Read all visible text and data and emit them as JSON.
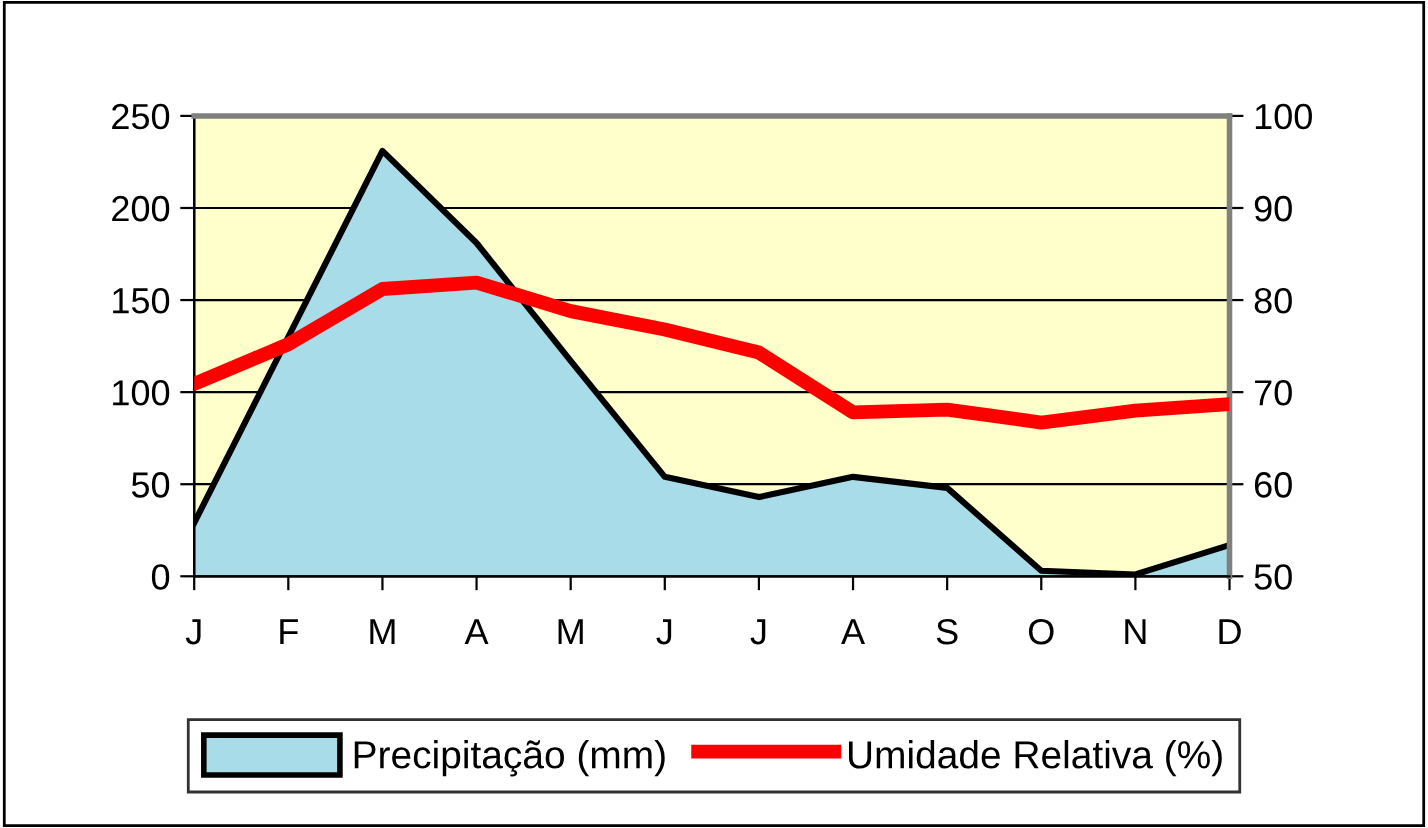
{
  "chart_data": {
    "type": "area",
    "categories": [
      "J",
      "F",
      "M",
      "A",
      "M",
      "J",
      "J",
      "A",
      "S",
      "O",
      "N",
      "D"
    ],
    "series": [
      {
        "name": "Precipitação (mm)",
        "color": "#a8dce8",
        "values": [
          29,
          130,
          231,
          181,
          117,
          54,
          43,
          54,
          48,
          3,
          1,
          17
        ]
      },
      {
        "name": "Umidade Relativa (%)",
        "type": "line",
        "axis": "y2",
        "color": "#ff0000",
        "values": [
          70.9,
          75.2,
          81.2,
          81.9,
          78.8,
          76.8,
          74.3,
          67.8,
          68.1,
          66.7,
          68.0,
          68.7
        ]
      }
    ],
    "ylim": [
      0,
      250
    ],
    "yticks": [
      0,
      50,
      100,
      150,
      200,
      250
    ],
    "y2lim": [
      50,
      100
    ],
    "y2ticks": [
      50,
      60,
      70,
      80,
      90,
      100
    ],
    "grid": "y",
    "legend": "bottom"
  }
}
